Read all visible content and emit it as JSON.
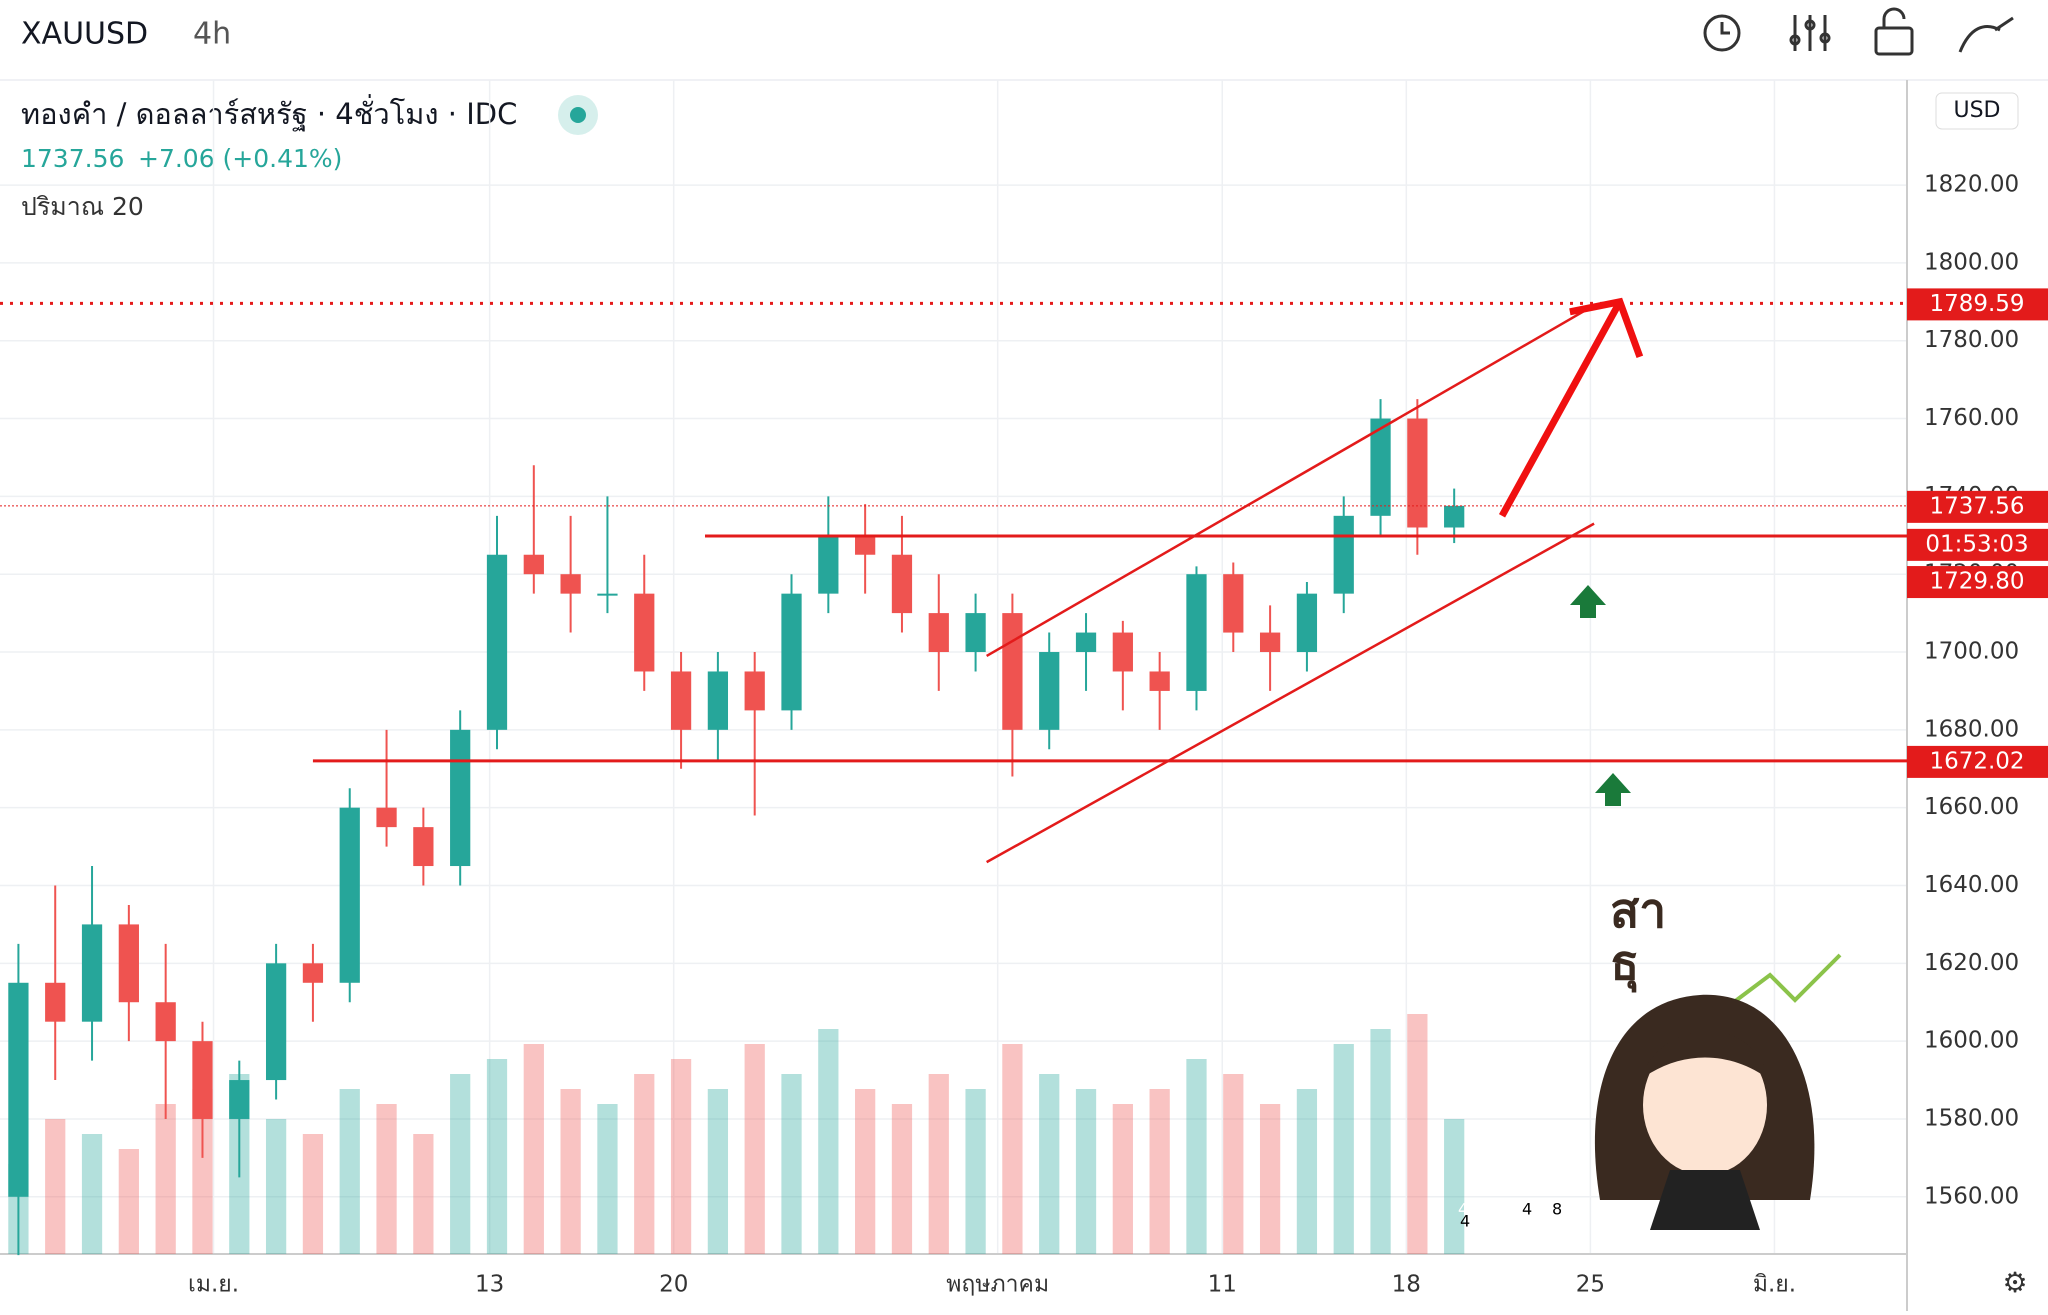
{
  "header": {
    "symbol": "XAUUSD",
    "interval": "4h",
    "name": "ทองคำ / ดอลลาร์สหรัฐ · 4ชั่วโมง · IDC",
    "quote": "1737.56",
    "change": "+7.06 (+0.41%)",
    "volume_label": "ปริมาณ 20",
    "currency": "USD",
    "countdown": "01:53:03"
  },
  "sticker": {
    "line1": "สา",
    "line2": "ธุ"
  },
  "events": [
    "4",
    "4",
    "8"
  ],
  "chart_data": {
    "type": "candlestick",
    "ohlc": [
      [
        1560,
        1625,
        1545,
        1615
      ],
      [
        1615,
        1640,
        1590,
        1605
      ],
      [
        1605,
        1645,
        1595,
        1630
      ],
      [
        1630,
        1635,
        1600,
        1610
      ],
      [
        1610,
        1625,
        1580,
        1600
      ],
      [
        1600,
        1605,
        1570,
        1580
      ],
      [
        1580,
        1595,
        1565,
        1590
      ],
      [
        1590,
        1625,
        1585,
        1620
      ],
      [
        1620,
        1625,
        1605,
        1615
      ],
      [
        1615,
        1665,
        1610,
        1660
      ],
      [
        1660,
        1680,
        1650,
        1655
      ],
      [
        1655,
        1660,
        1640,
        1645
      ],
      [
        1645,
        1685,
        1640,
        1680
      ],
      [
        1680,
        1735,
        1675,
        1725
      ],
      [
        1725,
        1748,
        1715,
        1720
      ],
      [
        1720,
        1735,
        1705,
        1715
      ],
      [
        1715,
        1740,
        1710,
        1715
      ],
      [
        1715,
        1725,
        1690,
        1695
      ],
      [
        1695,
        1700,
        1670,
        1680
      ],
      [
        1680,
        1700,
        1672,
        1695
      ],
      [
        1695,
        1700,
        1658,
        1685
      ],
      [
        1685,
        1720,
        1680,
        1715
      ],
      [
        1715,
        1740,
        1710,
        1730
      ],
      [
        1730,
        1738,
        1715,
        1725
      ],
      [
        1725,
        1735,
        1705,
        1710
      ],
      [
        1710,
        1720,
        1690,
        1700
      ],
      [
        1700,
        1715,
        1695,
        1710
      ],
      [
        1710,
        1715,
        1668,
        1680
      ],
      [
        1680,
        1705,
        1675,
        1700
      ],
      [
        1700,
        1710,
        1690,
        1705
      ],
      [
        1705,
        1708,
        1685,
        1695
      ],
      [
        1695,
        1700,
        1680,
        1690
      ],
      [
        1690,
        1722,
        1685,
        1720
      ],
      [
        1720,
        1723,
        1700,
        1705
      ],
      [
        1705,
        1712,
        1690,
        1700
      ],
      [
        1700,
        1718,
        1695,
        1715
      ],
      [
        1715,
        1740,
        1710,
        1735
      ],
      [
        1735,
        1765,
        1730,
        1760
      ],
      [
        1760,
        1765,
        1725,
        1732
      ],
      [
        1732,
        1742,
        1728,
        1737.56
      ]
    ],
    "volume": [
      30,
      45,
      40,
      35,
      50,
      55,
      60,
      45,
      40,
      55,
      50,
      40,
      60,
      65,
      70,
      55,
      50,
      60,
      65,
      55,
      70,
      60,
      75,
      55,
      50,
      60,
      55,
      70,
      60,
      55,
      50,
      55,
      65,
      60,
      50,
      55,
      70,
      75,
      80,
      45
    ],
    "vlim": [
      0,
      100
    ],
    "up_color": "#26a69a",
    "down_color": "#ef5350",
    "xlim": [
      -0.5,
      51.3
    ],
    "xticks": [
      {
        "value": 5.3,
        "label": "เม.ย."
      },
      {
        "value": 12.8,
        "label": "13"
      },
      {
        "value": 17.8,
        "label": "20"
      },
      {
        "value": 26.6,
        "label": "พฤษภาคม"
      },
      {
        "value": 32.7,
        "label": "11"
      },
      {
        "value": 37.7,
        "label": "18"
      },
      {
        "value": 42.7,
        "label": "25"
      },
      {
        "value": 47.7,
        "label": "มิ.ย."
      }
    ],
    "ylim": [
      1545.3,
      1847
    ],
    "yticks": [
      {
        "value": 1560,
        "label": "1560.00"
      },
      {
        "value": 1580,
        "label": "1580.00"
      },
      {
        "value": 1600,
        "label": "1600.00"
      },
      {
        "value": 1620,
        "label": "1620.00"
      },
      {
        "value": 1640,
        "label": "1640.00"
      },
      {
        "value": 1660,
        "label": "1660.00"
      },
      {
        "value": 1680,
        "label": "1680.00"
      },
      {
        "value": 1700,
        "label": "1700.00"
      },
      {
        "value": 1720,
        "label": "1720.00"
      },
      {
        "value": 1740,
        "label": "1740.00"
      },
      {
        "value": 1760,
        "label": "1760.00"
      },
      {
        "value": 1780,
        "label": "1780.00"
      },
      {
        "value": 1800,
        "label": "1800.00"
      },
      {
        "value": 1820,
        "label": "1820.00"
      }
    ],
    "grid": true,
    "levels": [
      {
        "value": 1789.59,
        "style": "dotted",
        "from": -0.5
      },
      {
        "value": 1737.56,
        "style": "thin",
        "from": -0.5
      },
      {
        "value": {
          "value": 1729.8,
          "label": "1729.80"
        },
        "style": "solid",
        "from": 18.65
      },
      {
        "value": 1672.02,
        "style": "solid",
        "from": 8
      }
    ],
    "channel": [
      [
        [
          26.3,
          1699
        ],
        [
          42.6,
          1788
        ]
      ],
      [
        [
          26.3,
          1646
        ],
        [
          42.8,
          1733
        ]
      ]
    ],
    "arrow": [
      [
        40.3,
        1735
      ],
      [
        43.5,
        1790
      ]
    ],
    "level_color": "#e31b1b"
  }
}
